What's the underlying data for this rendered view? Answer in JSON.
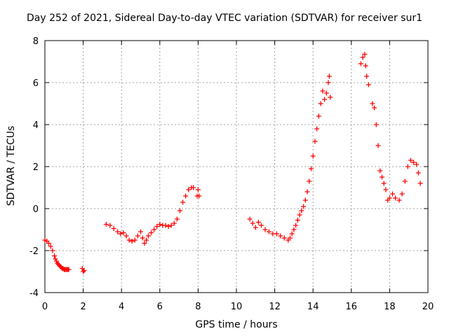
{
  "chart_data": {
    "type": "scatter",
    "title": "Day 252 of 2021, Sidereal Day-to-day VTEC variation (SDTVAR) for receiver sur1",
    "xlabel": "GPS time / hours",
    "ylabel": "SDTVAR / TECUs",
    "xlim": [
      0,
      20
    ],
    "ylim": [
      -4,
      8
    ],
    "xticks": [
      0,
      2,
      4,
      6,
      8,
      10,
      12,
      14,
      16,
      18,
      20
    ],
    "yticks": [
      -4,
      -2,
      0,
      2,
      4,
      6,
      8
    ],
    "grid": true,
    "marker": "+",
    "color": "#ff0000",
    "series": [
      {
        "name": "SDTVAR",
        "x": [
          0.0,
          0.1,
          0.2,
          0.3,
          0.4,
          0.5,
          0.55,
          0.6,
          0.65,
          0.7,
          0.75,
          0.8,
          0.85,
          0.9,
          0.95,
          1.0,
          1.05,
          1.1,
          1.15,
          1.2,
          1.25,
          1.95,
          2.0,
          2.05,
          3.2,
          3.4,
          3.6,
          3.8,
          3.95,
          4.1,
          4.25,
          4.4,
          4.55,
          4.7,
          4.85,
          5.0,
          5.1,
          5.2,
          5.3,
          5.4,
          5.55,
          5.7,
          5.85,
          6.0,
          6.15,
          6.3,
          6.45,
          6.6,
          6.75,
          6.9,
          7.05,
          7.2,
          7.35,
          7.5,
          7.65,
          7.75,
          7.95,
          8.0,
          8.05,
          10.7,
          10.85,
          11.0,
          11.15,
          11.3,
          11.5,
          11.7,
          11.9,
          12.1,
          12.3,
          12.5,
          12.7,
          12.8,
          12.9,
          13.0,
          13.1,
          13.2,
          13.3,
          13.4,
          13.5,
          13.6,
          13.7,
          13.8,
          13.9,
          14.0,
          14.1,
          14.2,
          14.3,
          14.4,
          14.5,
          14.6,
          14.7,
          14.8,
          14.85,
          14.9,
          16.5,
          16.6,
          16.7,
          16.75,
          16.8,
          16.9,
          17.1,
          17.2,
          17.3,
          17.4,
          17.5,
          17.6,
          17.7,
          17.8,
          17.9,
          18.0,
          18.15,
          18.3,
          18.5,
          18.65,
          18.8,
          18.95,
          19.1,
          19.25,
          19.4,
          19.5,
          19.6
        ],
        "y": [
          -1.5,
          -1.55,
          -1.65,
          -1.8,
          -2.0,
          -2.25,
          -2.4,
          -2.5,
          -2.6,
          -2.65,
          -2.7,
          -2.75,
          -2.8,
          -2.85,
          -2.85,
          -2.9,
          -2.9,
          -2.9,
          -2.9,
          -2.9,
          -2.9,
          -2.85,
          -3.0,
          -2.95,
          -0.75,
          -0.8,
          -0.95,
          -1.1,
          -1.2,
          -1.15,
          -1.3,
          -1.5,
          -1.55,
          -1.5,
          -1.3,
          -1.1,
          -1.4,
          -1.65,
          -1.5,
          -1.3,
          -1.15,
          -1.0,
          -0.85,
          -0.75,
          -0.8,
          -0.8,
          -0.85,
          -0.8,
          -0.7,
          -0.5,
          -0.1,
          0.3,
          0.6,
          0.9,
          1.0,
          1.0,
          0.6,
          0.9,
          0.6,
          -0.5,
          -0.7,
          -0.9,
          -0.65,
          -0.8,
          -1.0,
          -1.1,
          -1.2,
          -1.2,
          -1.3,
          -1.4,
          -1.5,
          -1.4,
          -1.2,
          -1.0,
          -0.8,
          -0.55,
          -0.3,
          -0.1,
          0.1,
          0.4,
          0.8,
          1.3,
          1.9,
          2.5,
          3.2,
          3.8,
          4.4,
          5.0,
          5.6,
          5.2,
          5.5,
          6.0,
          6.3,
          5.3,
          6.9,
          7.2,
          7.35,
          6.8,
          6.3,
          5.9,
          5.0,
          4.8,
          4.0,
          3.0,
          1.8,
          1.5,
          1.2,
          0.9,
          0.4,
          0.5,
          0.7,
          0.5,
          0.4,
          0.7,
          1.3,
          2.0,
          2.3,
          2.2,
          2.1,
          1.7,
          1.2
        ]
      }
    ]
  }
}
